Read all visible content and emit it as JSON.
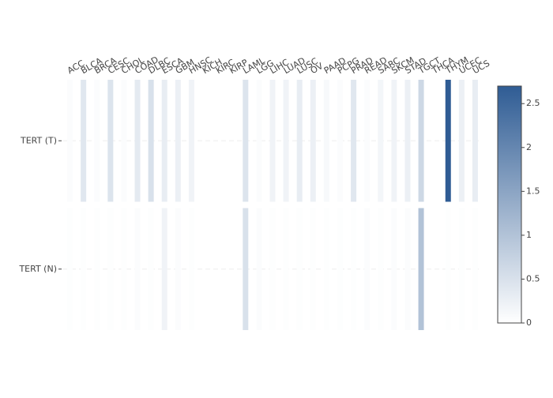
{
  "chart_data": {
    "type": "heatmap",
    "x": [
      "ACC",
      "BLCA",
      "BRCA",
      "CESC",
      "CHOL",
      "COAD",
      "DLBC",
      "ESCA",
      "GBM",
      "HNSC",
      "KICH",
      "KIRC",
      "KIRP",
      "LAML",
      "LGG",
      "LIHC",
      "LUAD",
      "LUSC",
      "OV",
      "PAAD",
      "PCPG",
      "PRAD",
      "READ",
      "SARC",
      "SKCM",
      "STAD",
      "TGCT",
      "THCA",
      "THYM",
      "UCEC",
      "UCS"
    ],
    "y": [
      "TERT (T)",
      "TERT (N)"
    ],
    "z": [
      [
        0.05,
        0.4,
        0.05,
        0.45,
        0.05,
        0.35,
        0.5,
        0.3,
        0.25,
        0.2,
        null,
        null,
        null,
        0.45,
        0.05,
        0.2,
        0.2,
        0.3,
        0.25,
        0.1,
        0.05,
        0.4,
        0.05,
        0.15,
        0.2,
        0.25,
        0.65,
        null,
        2.7,
        0.25,
        0.3
      ],
      [
        0.02,
        0.02,
        0.02,
        0.02,
        0.02,
        0.05,
        0.02,
        0.2,
        0.05,
        0.02,
        null,
        null,
        null,
        0.5,
        0.05,
        0.02,
        0.02,
        0.02,
        0.02,
        0.02,
        0.02,
        0.02,
        0.05,
        0.02,
        0.05,
        0.05,
        1.0,
        null,
        0.02,
        0.02,
        0.02
      ]
    ],
    "colorscale": [
      "#ffffff",
      "#2f5c94"
    ],
    "zlim": [
      0,
      2.7
    ],
    "zticks": [
      0,
      0.5,
      1,
      1.5,
      2,
      2.5
    ],
    "grid": true
  }
}
